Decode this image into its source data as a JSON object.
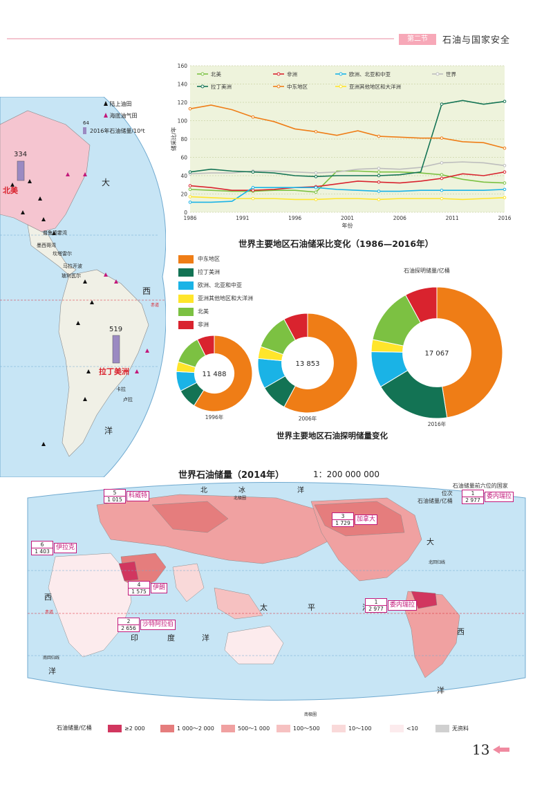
{
  "header": {
    "section_label": "第二节",
    "chapter_title": "石油与国家安全"
  },
  "colors": {
    "north_america": "#7cc142",
    "africa": "#d9232e",
    "europe_asia": "#1ab3e6",
    "world": "#bdbdbd",
    "latin_america": "#137354",
    "middle_east": "#ef7d16",
    "asia_pacific": "#ffe52b",
    "ocean": "#c7e5f5",
    "land": "#f0f0e6"
  },
  "top_map": {
    "legend": {
      "onshore": "陆上油田",
      "offshore": "海底油气田",
      "reserve": "2016年石油储量/10⁸t",
      "sample_value": "64"
    },
    "north_america_value": "334",
    "north_america_label": "北美",
    "latin_america_value": "519",
    "latin_america_label": "拉丁美洲",
    "ocean_char_1": "大",
    "ocean_char_2": "西",
    "ocean_char_3": "洋",
    "equator_label": "赤道",
    "field_labels": [
      "普鲁德霍湾",
      "墨西哥湾",
      "坎塔雷尔",
      "马拉开波",
      "玻利瓦尔",
      "卡拉",
      "卢拉"
    ]
  },
  "chart_data": [
    {
      "type": "line",
      "title": "世界主要地区石油储采比变化（1986—2016年）",
      "xlabel": "年份",
      "ylabel": "储采比/年",
      "ylim": [
        0,
        160
      ],
      "yticks": [
        0,
        20,
        40,
        60,
        80,
        100,
        120,
        140,
        160
      ],
      "x_tick_labels": [
        "1986",
        "1991",
        "1996",
        "2001",
        "2006",
        "2011",
        "2016"
      ],
      "x": [
        1986,
        1988,
        1990,
        1992,
        1994,
        1996,
        1998,
        2000,
        2002,
        2004,
        2006,
        2008,
        2010,
        2012,
        2014,
        2016
      ],
      "grid": true,
      "legend_position": "top",
      "series": [
        {
          "name": "北美",
          "key": "north_america",
          "values": [
            25,
            24,
            23,
            23,
            24,
            24,
            22,
            45,
            45,
            44,
            44,
            43,
            41,
            36,
            33,
            32
          ]
        },
        {
          "name": "非洲",
          "key": "africa",
          "values": [
            29,
            27,
            24,
            24,
            25,
            27,
            28,
            31,
            34,
            33,
            32,
            34,
            37,
            42,
            40,
            44
          ]
        },
        {
          "name": "欧洲、北亚和中亚",
          "key": "europe_asia",
          "values": [
            11,
            11,
            12,
            27,
            27,
            27,
            27,
            25,
            24,
            23,
            23,
            24,
            24,
            24,
            24,
            25
          ]
        },
        {
          "name": "世界",
          "key": "world",
          "values": [
            42,
            43,
            43,
            45,
            45,
            44,
            43,
            44,
            47,
            48,
            47,
            49,
            54,
            55,
            54,
            51
          ]
        },
        {
          "name": "拉丁美洲",
          "key": "latin_america",
          "values": [
            44,
            47,
            45,
            44,
            43,
            40,
            39,
            40,
            40,
            40,
            41,
            44,
            118,
            122,
            118,
            121
          ]
        },
        {
          "name": "中东地区",
          "key": "middle_east",
          "values": [
            113,
            117,
            112,
            104,
            99,
            91,
            88,
            84,
            89,
            83,
            82,
            81,
            81,
            77,
            76,
            70
          ]
        },
        {
          "name": "亚洲其他地区和大洋洲",
          "key": "asia_pacific",
          "values": [
            17,
            16,
            15,
            15,
            15,
            14,
            14,
            15,
            15,
            14,
            15,
            15,
            15,
            14,
            15,
            16
          ]
        }
      ]
    },
    {
      "type": "pie",
      "title": "世界主要地区石油探明储量变化",
      "unit": "石油探明储量/亿桶",
      "categories": [
        "中东地区",
        "拉丁美洲",
        "欧洲、北亚和中亚",
        "亚洲其他地区和大洋洲",
        "北美",
        "非洲"
      ],
      "keys": [
        "middle_east",
        "latin_america",
        "europe_asia",
        "asia_pacific",
        "north_america",
        "africa"
      ],
      "donuts": [
        {
          "year": "1996年",
          "total": "11 488",
          "values": [
            0.56,
            0.08,
            0.08,
            0.04,
            0.12,
            0.07
          ]
        },
        {
          "year": "2006年",
          "total": "13 853",
          "values": [
            0.59,
            0.09,
            0.1,
            0.04,
            0.12,
            0.08
          ]
        },
        {
          "year": "2016年",
          "total": "17 067",
          "values": [
            0.48,
            0.19,
            0.09,
            0.03,
            0.14,
            0.08
          ]
        }
      ]
    }
  ],
  "world_map": {
    "title": "世界石油储量（2014年）",
    "scale": "1：200 000 000",
    "rank_legend_line1": "石油储量前六位的国家",
    "rank_legend_line2": "位次",
    "rank_legend_line3": "石油储量/亿桶",
    "rank_legend_example_rank": "1",
    "rank_legend_example_value": "2 977",
    "rank_legend_example_name": "委内瑞拉",
    "callouts": [
      {
        "rank": "5",
        "value": "1 015",
        "name": "科威特"
      },
      {
        "rank": "6",
        "value": "1 403",
        "name": "伊拉克"
      },
      {
        "rank": "4",
        "value": "1 575",
        "name": "伊朗"
      },
      {
        "rank": "2",
        "value": "2 656",
        "name": "沙特阿拉伯"
      },
      {
        "rank": "3",
        "value": "1 729",
        "name": "加拿大"
      },
      {
        "rank": "1",
        "value": "2 977",
        "name": "委内瑞拉"
      }
    ],
    "ocean_labels": [
      "北",
      "冰",
      "洋",
      "太",
      "平",
      "洋",
      "印",
      "度",
      "洋",
      "大",
      "西",
      "洋",
      "西",
      "洋"
    ],
    "lines": [
      "赤道",
      "南回归线",
      "北回归线",
      "北极圈",
      "南极圈"
    ],
    "legend": {
      "title": "石油储量/亿桶",
      "items": [
        {
          "label": "≥2 000",
          "color": "#d1365f"
        },
        {
          "label": "1 000～2 000",
          "color": "#e57d7d"
        },
        {
          "label": "500～1 000",
          "color": "#f0a1a1"
        },
        {
          "label": "100～500",
          "color": "#f6c1c1"
        },
        {
          "label": "10～100",
          "color": "#f9d9d9"
        },
        {
          "label": "<10",
          "color": "#fcebed"
        },
        {
          "label": "无资料",
          "color": "#d0d0d0"
        }
      ]
    }
  },
  "page": {
    "number": "13"
  }
}
